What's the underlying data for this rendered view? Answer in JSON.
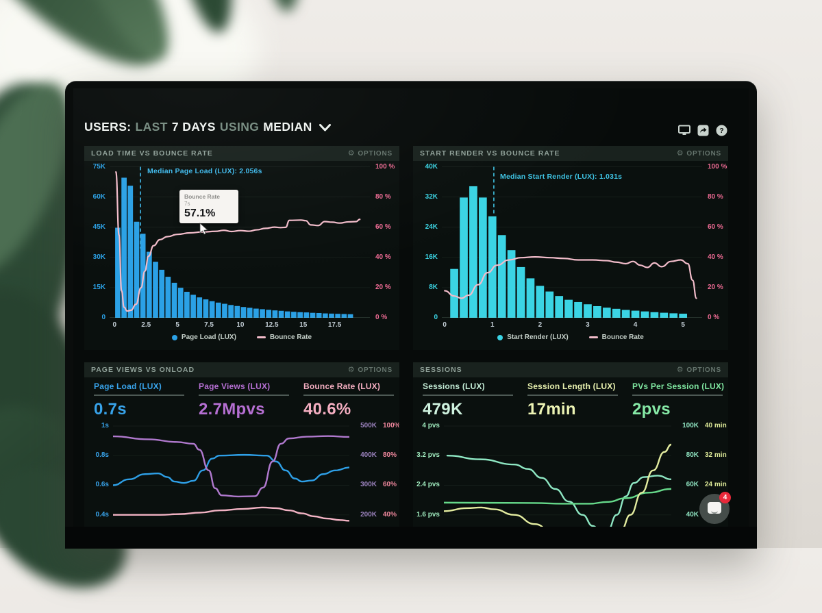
{
  "title": {
    "users": "USERS:",
    "last": "LAST",
    "days": "7 DAYS",
    "using": "USING",
    "median": "MEDIAN"
  },
  "top_icons": [
    "monitor",
    "share",
    "help"
  ],
  "chat_button": {
    "badge": "4"
  },
  "panels": {
    "load_time": {
      "title": "LOAD TIME VS BOUNCE RATE",
      "options_label": "OPTIONS",
      "annotation": "Median Page Load (LUX): 2.056s",
      "tooltip": {
        "title": "Bounce Rate",
        "sub": "7s",
        "value": "57.1%"
      },
      "legend": [
        {
          "label": "Page Load (LUX)",
          "color": "#2ba1e6"
        },
        {
          "label": "Bounce Rate",
          "color": "#f2bcca"
        }
      ]
    },
    "start_render": {
      "title": "START RENDER VS BOUNCE RATE",
      "options_label": "OPTIONS",
      "annotation": "Median Start Render (LUX): 1.031s",
      "legend": [
        {
          "label": "Start Render (LUX)",
          "color": "#3bd4e4"
        },
        {
          "label": "Bounce Rate",
          "color": "#f2bcca"
        }
      ]
    },
    "page_views": {
      "title": "PAGE VIEWS VS ONLOAD",
      "options_label": "OPTIONS",
      "stats": [
        {
          "label": "Page Load (LUX)",
          "value": "0.7s",
          "color": "#38a3ea"
        },
        {
          "label": "Page Views (LUX)",
          "value": "2.7Mpvs",
          "color": "#b56fd2"
        },
        {
          "label": "Bounce Rate (LUX)",
          "value": "40.6%",
          "color": "#f4aec1"
        }
      ]
    },
    "sessions": {
      "title": "SESSIONS",
      "options_label": "OPTIONS",
      "stats": [
        {
          "label": "Sessions (LUX)",
          "value": "479K",
          "color": "#c2ebd5"
        },
        {
          "label": "Session Length (LUX)",
          "value": "17min",
          "color": "#e7f0ae"
        },
        {
          "label": "PVs Per Session (LUX)",
          "value": "2pvs",
          "color": "#7fe6a0"
        }
      ]
    }
  },
  "chart_data": {
    "load_time": {
      "type": "bar+line",
      "xrange": [
        -0.4,
        20.3
      ],
      "tickf": {
        "f0": 0.02,
        "f1": 1.0
      },
      "bars": {
        "start": 0.25,
        "step": 0.5,
        "width": 0.5,
        "max": 77,
        "color": "#2ba1e6",
        "values": [
          45,
          70,
          66,
          48,
          42,
          33,
          28,
          24,
          20.5,
          17.5,
          15,
          13,
          11.5,
          10.2,
          9.2,
          8.3,
          7.6,
          7,
          6.4,
          5.9,
          5.4,
          5,
          4.6,
          4.3,
          4,
          3.7,
          3.5,
          3.2,
          3,
          2.8,
          2.7,
          2.5,
          2.4,
          2.2,
          2.1,
          2,
          1.9,
          1.8
        ]
      },
      "median": {
        "x": 2.056,
        "y2f": 0.55,
        "color": "#3fb8ea"
      },
      "lines": [
        {
          "name": "Bounce Rate",
          "color": "#f2bcca",
          "w": 2.2,
          "yrange": [
            0,
            102.5
          ],
          "points": [
            [
              0.1,
              97
            ],
            [
              0.35,
              55
            ],
            [
              0.55,
              18
            ],
            [
              0.75,
              7
            ],
            [
              1.0,
              4.5
            ],
            [
              1.3,
              5
            ],
            [
              1.7,
              9
            ],
            [
              2.1,
              20
            ],
            [
              2.4,
              31
            ],
            [
              2.7,
              41
            ],
            [
              3.1,
              48
            ],
            [
              3.6,
              52
            ],
            [
              4.2,
              54
            ],
            [
              5,
              55.5
            ],
            [
              6,
              56.5
            ],
            [
              7,
              57.1
            ],
            [
              8,
              57.5
            ],
            [
              8.7,
              58.2
            ],
            [
              9.3,
              57.4
            ],
            [
              10,
              58
            ],
            [
              10.7,
              57.6
            ],
            [
              11.3,
              58.5
            ],
            [
              12,
              59.5
            ],
            [
              12.7,
              60.3
            ],
            [
              13.2,
              60
            ],
            [
              13.6,
              60.2
            ],
            [
              13.9,
              64.8
            ],
            [
              14.8,
              65
            ],
            [
              15.2,
              64.6
            ],
            [
              15.6,
              61.8
            ],
            [
              16.2,
              61.4
            ],
            [
              16.7,
              64
            ],
            [
              17.3,
              63.6
            ],
            [
              17.9,
              63
            ],
            [
              18.6,
              63.8
            ],
            [
              19.2,
              64
            ],
            [
              19.5,
              65.5
            ]
          ]
        }
      ],
      "axes": {
        "left": {
          "labels": [
            "75K",
            "60K",
            "45K",
            "30K",
            "15K",
            "0"
          ],
          "color": "#2ba1e6"
        },
        "right": {
          "labels": [
            "100 %",
            "80 %",
            "60 %",
            "40 %",
            "20 %",
            "0 %"
          ],
          "color": "#ee6b94"
        },
        "x": {
          "values": [
            0,
            2.5,
            5,
            7.5,
            10,
            12.5,
            15,
            17.5
          ],
          "color": "#c2cdd4"
        }
      }
    },
    "start_render": {
      "type": "bar+line",
      "xrange": [
        -0.06,
        5.4
      ],
      "tickf": {
        "f0": 0.02,
        "f1": 1.0
      },
      "bars": {
        "start": 0.2,
        "step": 0.2,
        "width": 0.2,
        "max": 41,
        "color": "#3bd4e4",
        "values": [
          13,
          32,
          35,
          32,
          27,
          22,
          18,
          13.5,
          10.5,
          8.5,
          7,
          5.8,
          4.8,
          4.2,
          3.6,
          3.1,
          2.7,
          2.4,
          2.1,
          1.9,
          1.7,
          1.5,
          1.35,
          1.2,
          1.1
        ]
      },
      "median": {
        "x": 1.031,
        "y2f": 0.34,
        "color": "#3fc4e4"
      },
      "lines": [
        {
          "name": "Bounce Rate",
          "color": "#f2bcca",
          "w": 2.2,
          "yrange": [
            0,
            102.5
          ],
          "points": [
            [
              0,
              18
            ],
            [
              0.2,
              14.5
            ],
            [
              0.35,
              13
            ],
            [
              0.5,
              15
            ],
            [
              0.7,
              22
            ],
            [
              0.9,
              30
            ],
            [
              1.1,
              35
            ],
            [
              1.35,
              38.5
            ],
            [
              1.6,
              40
            ],
            [
              1.9,
              40.5
            ],
            [
              2.2,
              40
            ],
            [
              2.5,
              39.5
            ],
            [
              2.8,
              38.5
            ],
            [
              3.1,
              38.5
            ],
            [
              3.4,
              38
            ],
            [
              3.6,
              37
            ],
            [
              3.8,
              36
            ],
            [
              3.95,
              37.5
            ],
            [
              4.1,
              35
            ],
            [
              4.25,
              33.5
            ],
            [
              4.4,
              36.5
            ],
            [
              4.55,
              34
            ],
            [
              4.75,
              37.5
            ],
            [
              4.95,
              38.5
            ],
            [
              5.1,
              36
            ],
            [
              5.2,
              25
            ],
            [
              5.28,
              13
            ]
          ]
        }
      ],
      "axes": {
        "left": {
          "labels": [
            "40K",
            "32K",
            "24K",
            "16K",
            "8K",
            "0"
          ],
          "color": "#3bd4e4"
        },
        "right": {
          "labels": [
            "100 %",
            "80 %",
            "60 %",
            "40 %",
            "20 %",
            "0 %"
          ],
          "color": "#ee6b94"
        },
        "x": {
          "values": [
            0,
            1,
            2,
            3,
            4,
            5
          ],
          "color": "#c2cdd4"
        }
      }
    },
    "page_views": {
      "type": "line",
      "xrange": [
        0,
        1
      ],
      "tickf": {
        "f0": 0.081,
        "f1": 0.892
      },
      "lines": [
        {
          "name": "Page Load (s)",
          "color": "#2e9fe6",
          "w": 2.4,
          "yrange": [
            0.32,
            1.06
          ],
          "points": [
            [
              0,
              0.6
            ],
            [
              0.068,
              0.64
            ],
            [
              0.135,
              0.675
            ],
            [
              0.19,
              0.68
            ],
            [
              0.23,
              0.655
            ],
            [
              0.26,
              0.625
            ],
            [
              0.3,
              0.615
            ],
            [
              0.34,
              0.63
            ],
            [
              0.38,
              0.7
            ],
            [
              0.42,
              0.78
            ],
            [
              0.45,
              0.8
            ],
            [
              0.555,
              0.805
            ],
            [
              0.65,
              0.8
            ],
            [
              0.69,
              0.76
            ],
            [
              0.73,
              0.7
            ],
            [
              0.77,
              0.645
            ],
            [
              0.8,
              0.625
            ],
            [
              0.84,
              0.632
            ],
            [
              0.89,
              0.675
            ],
            [
              0.94,
              0.7
            ],
            [
              1,
              0.72
            ]
          ]
        },
        {
          "name": "Page Views (K)",
          "color": "#b079ce",
          "w": 2.4,
          "yrange": [
            160,
            530
          ],
          "points": [
            [
              0,
              465
            ],
            [
              0.15,
              455
            ],
            [
              0.27,
              446
            ],
            [
              0.34,
              440
            ],
            [
              0.365,
              420
            ],
            [
              0.405,
              350
            ],
            [
              0.432,
              290
            ],
            [
              0.46,
              266
            ],
            [
              0.53,
              262
            ],
            [
              0.6,
              263
            ],
            [
              0.635,
              292
            ],
            [
              0.675,
              380
            ],
            [
              0.71,
              440
            ],
            [
              0.745,
              458
            ],
            [
              0.82,
              464
            ],
            [
              0.91,
              466
            ],
            [
              1,
              463
            ]
          ]
        },
        {
          "name": "Bounce Rate (%)",
          "color": "#f2b3c4",
          "w": 2.4,
          "yrange": [
            32,
            106
          ],
          "points": [
            [
              0,
              40
            ],
            [
              0.1,
              40
            ],
            [
              0.2,
              40
            ],
            [
              0.28,
              40.5
            ],
            [
              0.37,
              41.5
            ],
            [
              0.45,
              43
            ],
            [
              0.55,
              44
            ],
            [
              0.635,
              45
            ],
            [
              0.69,
              44.5
            ],
            [
              0.745,
              43
            ],
            [
              0.8,
              41
            ],
            [
              0.85,
              39
            ],
            [
              0.905,
              37.5
            ],
            [
              0.96,
              36.5
            ],
            [
              1,
              36
            ]
          ]
        }
      ],
      "axes": {
        "left": {
          "labels": [
            "1s",
            "0.8s",
            "0.6s",
            "0.4s"
          ],
          "color": "#38a3ea"
        },
        "right": {
          "pairs": [
            [
              "500K",
              "100%"
            ],
            [
              "400K",
              "80%"
            ],
            [
              "300K",
              "60%"
            ],
            [
              "200K",
              "40%"
            ]
          ],
          "c1": "#9b82bd",
          "c2": "#f2899f"
        }
      }
    },
    "sessions": {
      "type": "line",
      "xrange": [
        0,
        1
      ],
      "tickf": {
        "f0": 0.081,
        "f1": 0.892
      },
      "lines": [
        {
          "name": "Sessions (K)",
          "color": "#8fe8c4",
          "w": 2.4,
          "yrange": [
            32,
            106
          ],
          "points": [
            [
              0.015,
              80
            ],
            [
              0.16,
              77.5
            ],
            [
              0.31,
              74
            ],
            [
              0.37,
              71
            ],
            [
              0.43,
              65
            ],
            [
              0.49,
              57.5
            ],
            [
              0.55,
              49
            ],
            [
              0.61,
              40
            ],
            [
              0.655,
              32.5
            ],
            [
              0.69,
              28
            ],
            [
              0.72,
              29.5
            ],
            [
              0.76,
              40
            ],
            [
              0.8,
              52.5
            ],
            [
              0.835,
              61.5
            ],
            [
              0.88,
              65.5
            ],
            [
              0.94,
              66.5
            ],
            [
              1,
              64
            ]
          ]
        },
        {
          "name": "PVs Per Session (pvs)",
          "color": "#66d98a",
          "w": 2.4,
          "yrange": [
            1.28,
            4.24
          ],
          "points": [
            [
              0,
              1.93
            ],
            [
              0.4,
              1.92
            ],
            [
              0.52,
              1.9
            ],
            [
              0.64,
              1.9
            ],
            [
              0.72,
              1.95
            ],
            [
              0.8,
              2.05
            ],
            [
              0.9,
              2.2
            ],
            [
              1,
              2.3
            ]
          ]
        },
        {
          "name": "Session Length (min)",
          "color": "#e4eda0",
          "w": 2.4,
          "yrange": [
            12.8,
            42.4
          ],
          "points": [
            [
              0,
              17
            ],
            [
              0.1,
              17.8
            ],
            [
              0.165,
              18
            ],
            [
              0.22,
              17.5
            ],
            [
              0.31,
              16
            ],
            [
              0.4,
              13.5
            ],
            [
              0.49,
              10.5
            ],
            [
              0.57,
              8.5
            ],
            [
              0.66,
              8.2
            ],
            [
              0.74,
              9.5
            ],
            [
              0.78,
              12
            ],
            [
              0.82,
              16
            ],
            [
              0.87,
              22
            ],
            [
              0.92,
              28
            ],
            [
              0.97,
              33
            ],
            [
              1,
              35
            ]
          ]
        }
      ],
      "axes": {
        "left": {
          "labels": [
            "4 pvs",
            "3.2 pvs",
            "2.4 pvs",
            "1.6 pvs"
          ],
          "color": "#9fe9bd"
        },
        "right": {
          "pairs": [
            [
              "100K",
              "40 min"
            ],
            [
              "80K",
              "32 min"
            ],
            [
              "60K",
              "24 min"
            ],
            [
              "40K",
              ""
            ]
          ],
          "c1": "#8fe3c0",
          "c2": "#dce897"
        }
      }
    }
  }
}
